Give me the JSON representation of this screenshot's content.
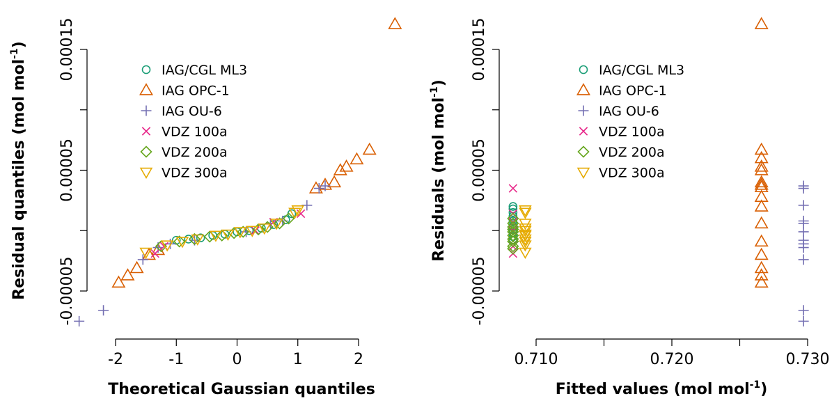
{
  "colors": {
    "IAG/CGL ML3": "#1b9e77",
    "IAG OPC-1": "#d95f02",
    "IAG OU-6": "#7570b3",
    "VDZ 100a": "#e7298a",
    "VDZ 200a": "#66a61e",
    "VDZ 300a": "#e6ab02"
  },
  "markers": {
    "IAG/CGL ML3": "circle",
    "IAG OPC-1": "triangle-up",
    "IAG OU-6": "plus",
    "VDZ 100a": "cross",
    "VDZ 200a": "diamond",
    "VDZ 300a": "triangle-down"
  },
  "legend_entries": [
    "IAG/CGL ML3",
    "IAG OPC-1",
    "IAG OU-6",
    "VDZ 100a",
    "VDZ 200a",
    "VDZ 300a"
  ],
  "chart_data": [
    {
      "type": "scatter",
      "xlabel": "Theoretical Gaussian quantiles",
      "ylabel_main": "Residual quantiles (mol mol",
      "ylabel_sup": "-1",
      "ylabel_end": ")",
      "xlim": [
        -2.7,
        2.7
      ],
      "ylim": [
        -7.8e-05,
        0.00017
      ],
      "xticks": [
        -2,
        -1,
        0,
        1,
        2
      ],
      "xtick_labels": [
        "-2",
        "-1",
        "0",
        "1",
        "2"
      ],
      "yticks": [
        -5e-05,
        0,
        5e-05,
        0.0001,
        0.00015
      ],
      "ytick_labels": [
        "-0.00005",
        "",
        "0.00005",
        "",
        "0.00015"
      ],
      "legend_position": "top-left",
      "series": [
        {
          "name": "IAG/CGL ML3",
          "points": [
            [
              -1.0,
              -8e-06
            ],
            [
              -0.8,
              -7e-06
            ],
            [
              -0.6,
              -6e-06
            ],
            [
              -0.4,
              -4e-06
            ],
            [
              -0.2,
              -3e-06
            ],
            [
              0.0,
              -1e-06
            ],
            [
              0.2,
              0.0
            ],
            [
              0.4,
              2e-06
            ],
            [
              0.6,
              5e-06
            ],
            [
              0.8,
              9e-06
            ],
            [
              0.9,
              1.4e-05
            ]
          ]
        },
        {
          "name": "IAG OPC-1",
          "points": [
            [
              -1.95,
              -4.3e-05
            ],
            [
              -1.8,
              -3.7e-05
            ],
            [
              -1.65,
              -3.1e-05
            ],
            [
              -1.45,
              -2e-05
            ],
            [
              -1.3,
              -1.6e-05
            ],
            [
              1.3,
              3.5e-05
            ],
            [
              1.45,
              3.8e-05
            ],
            [
              1.6,
              4e-05
            ],
            [
              1.7,
              5e-05
            ],
            [
              1.8,
              5.3e-05
            ],
            [
              1.97,
              5.9e-05
            ],
            [
              2.18,
              6.7e-05
            ],
            [
              2.6,
              0.000171
            ]
          ]
        },
        {
          "name": "IAG OU-6",
          "points": [
            [
              -2.6,
              -7.5e-05
            ],
            [
              -2.2,
              -6.6e-05
            ],
            [
              -1.55,
              -2.4e-05
            ],
            [
              -1.3,
              -1.4e-05
            ],
            [
              -1.1,
              -1.1e-05
            ],
            [
              -0.7,
              -8e-06
            ],
            [
              0.15,
              -1e-06
            ],
            [
              0.55,
              6e-06
            ],
            [
              0.75,
              8e-06
            ],
            [
              1.15,
              2.1e-05
            ],
            [
              1.35,
              3.5e-05
            ],
            [
              1.45,
              3.7e-05
            ]
          ]
        },
        {
          "name": "VDZ 100a",
          "points": [
            [
              -1.35,
              -1.9e-05
            ],
            [
              -1.2,
              -1.3e-05
            ],
            [
              0.3,
              0.0
            ],
            [
              0.6,
              7e-06
            ],
            [
              1.05,
              1.4e-05
            ]
          ]
        },
        {
          "name": "VDZ 200a",
          "points": [
            [
              -1.25,
              -1.3e-05
            ],
            [
              -0.95,
              -9e-06
            ],
            [
              -0.7,
              -7e-06
            ],
            [
              -0.45,
              -5e-06
            ],
            [
              -0.25,
              -4e-06
            ],
            [
              -0.05,
              -2e-06
            ],
            [
              0.1,
              -1e-06
            ],
            [
              0.35,
              1e-06
            ],
            [
              0.5,
              3e-06
            ],
            [
              0.7,
              6e-06
            ],
            [
              0.85,
              1e-05
            ]
          ]
        },
        {
          "name": "VDZ 300a",
          "points": [
            [
              -1.5,
              -1.8e-05
            ],
            [
              -1.15,
              -1.2e-05
            ],
            [
              -0.9,
              -9e-06
            ],
            [
              -0.65,
              -7e-06
            ],
            [
              -0.35,
              -4e-06
            ],
            [
              -0.15,
              -3e-06
            ],
            [
              0.05,
              -1e-06
            ],
            [
              0.25,
              0.0
            ],
            [
              0.45,
              2e-06
            ],
            [
              0.65,
              6e-06
            ],
            [
              0.95,
              1.5e-05
            ],
            [
              1.0,
              1.7e-05
            ]
          ]
        }
      ]
    },
    {
      "type": "scatter",
      "xlabel_main": "Fitted values (mol mol",
      "xlabel_sup": "-1",
      "xlabel_end": ")",
      "ylabel_main": "Residuals (mol mol",
      "ylabel_sup": "-1",
      "ylabel_end": ")",
      "xlim": [
        0.7076,
        0.7305
      ],
      "ylim": [
        -7.8e-05,
        0.00017
      ],
      "xticks": [
        0.71,
        0.715,
        0.72,
        0.725,
        0.73
      ],
      "xtick_labels": [
        "0.710",
        "",
        "0.720",
        "",
        "0.730"
      ],
      "yticks": [
        -5e-05,
        0,
        5e-05,
        0.0001,
        0.00015
      ],
      "ytick_labels": [
        "-0.00005",
        "",
        "0.00005",
        "",
        "0.00015"
      ],
      "legend_position": "top-center",
      "series": [
        {
          "name": "IAG/CGL ML3",
          "points": [
            [
              0.7083,
              2e-05
            ],
            [
              0.7083,
              1.8e-05
            ],
            [
              0.7083,
              1.5e-05
            ],
            [
              0.7083,
              1.2e-05
            ],
            [
              0.7083,
              8e-06
            ],
            [
              0.7083,
              4e-06
            ],
            [
              0.7083,
              1e-06
            ],
            [
              0.7083,
              -2e-06
            ],
            [
              0.7083,
              -5e-06
            ],
            [
              0.7083,
              -8e-06
            ]
          ]
        },
        {
          "name": "IAG OPC-1",
          "points": [
            [
              0.7266,
              0.000171
            ],
            [
              0.7266,
              6.7e-05
            ],
            [
              0.7266,
              6e-05
            ],
            [
              0.7266,
              5.3e-05
            ],
            [
              0.7266,
              5e-05
            ],
            [
              0.7266,
              4e-05
            ],
            [
              0.7266,
              3.8e-05
            ],
            [
              0.7266,
              3.6e-05
            ],
            [
              0.7266,
              2.8e-05
            ],
            [
              0.7266,
              2e-05
            ],
            [
              0.7266,
              6e-06
            ],
            [
              0.7266,
              -9e-06
            ],
            [
              0.7266,
              -2e-05
            ],
            [
              0.7266,
              -3.1e-05
            ],
            [
              0.7266,
              -3.7e-05
            ],
            [
              0.7266,
              -4.3e-05
            ]
          ]
        },
        {
          "name": "IAG OU-6",
          "points": [
            [
              0.7297,
              3.7e-05
            ],
            [
              0.7297,
              3.5e-05
            ],
            [
              0.7297,
              2.1e-05
            ],
            [
              0.7297,
              8e-06
            ],
            [
              0.7297,
              6e-06
            ],
            [
              0.7297,
              -1e-06
            ],
            [
              0.7297,
              -8e-06
            ],
            [
              0.7297,
              -1.1e-05
            ],
            [
              0.7297,
              -1.4e-05
            ],
            [
              0.7297,
              -2.4e-05
            ],
            [
              0.7297,
              -6.6e-05
            ],
            [
              0.7297,
              -7.5e-05
            ]
          ]
        },
        {
          "name": "VDZ 100a",
          "points": [
            [
              0.7083,
              3.5e-05
            ],
            [
              0.7083,
              1.4e-05
            ],
            [
              0.7083,
              7e-06
            ],
            [
              0.7083,
              0.0
            ],
            [
              0.7083,
              -1.3e-05
            ],
            [
              0.7083,
              -1.9e-05
            ]
          ]
        },
        {
          "name": "VDZ 200a",
          "points": [
            [
              0.7083,
              1e-05
            ],
            [
              0.7083,
              6e-06
            ],
            [
              0.7083,
              3e-06
            ],
            [
              0.7083,
              1e-06
            ],
            [
              0.7083,
              -1e-06
            ],
            [
              0.7083,
              -4e-06
            ],
            [
              0.7083,
              -7e-06
            ],
            [
              0.7083,
              -9e-06
            ],
            [
              0.7083,
              -1.3e-05
            ],
            [
              0.7083,
              -1.5e-05
            ]
          ]
        },
        {
          "name": "VDZ 300a",
          "points": [
            [
              0.7092,
              1.7e-05
            ],
            [
              0.7092,
              1.5e-05
            ],
            [
              0.7092,
              6e-06
            ],
            [
              0.7092,
              2e-06
            ],
            [
              0.7092,
              0.0
            ],
            [
              0.7092,
              -3e-06
            ],
            [
              0.7092,
              -4e-06
            ],
            [
              0.7092,
              -7e-06
            ],
            [
              0.7092,
              -9e-06
            ],
            [
              0.7092,
              -1.2e-05
            ],
            [
              0.7092,
              -1.8e-05
            ]
          ]
        }
      ]
    }
  ]
}
